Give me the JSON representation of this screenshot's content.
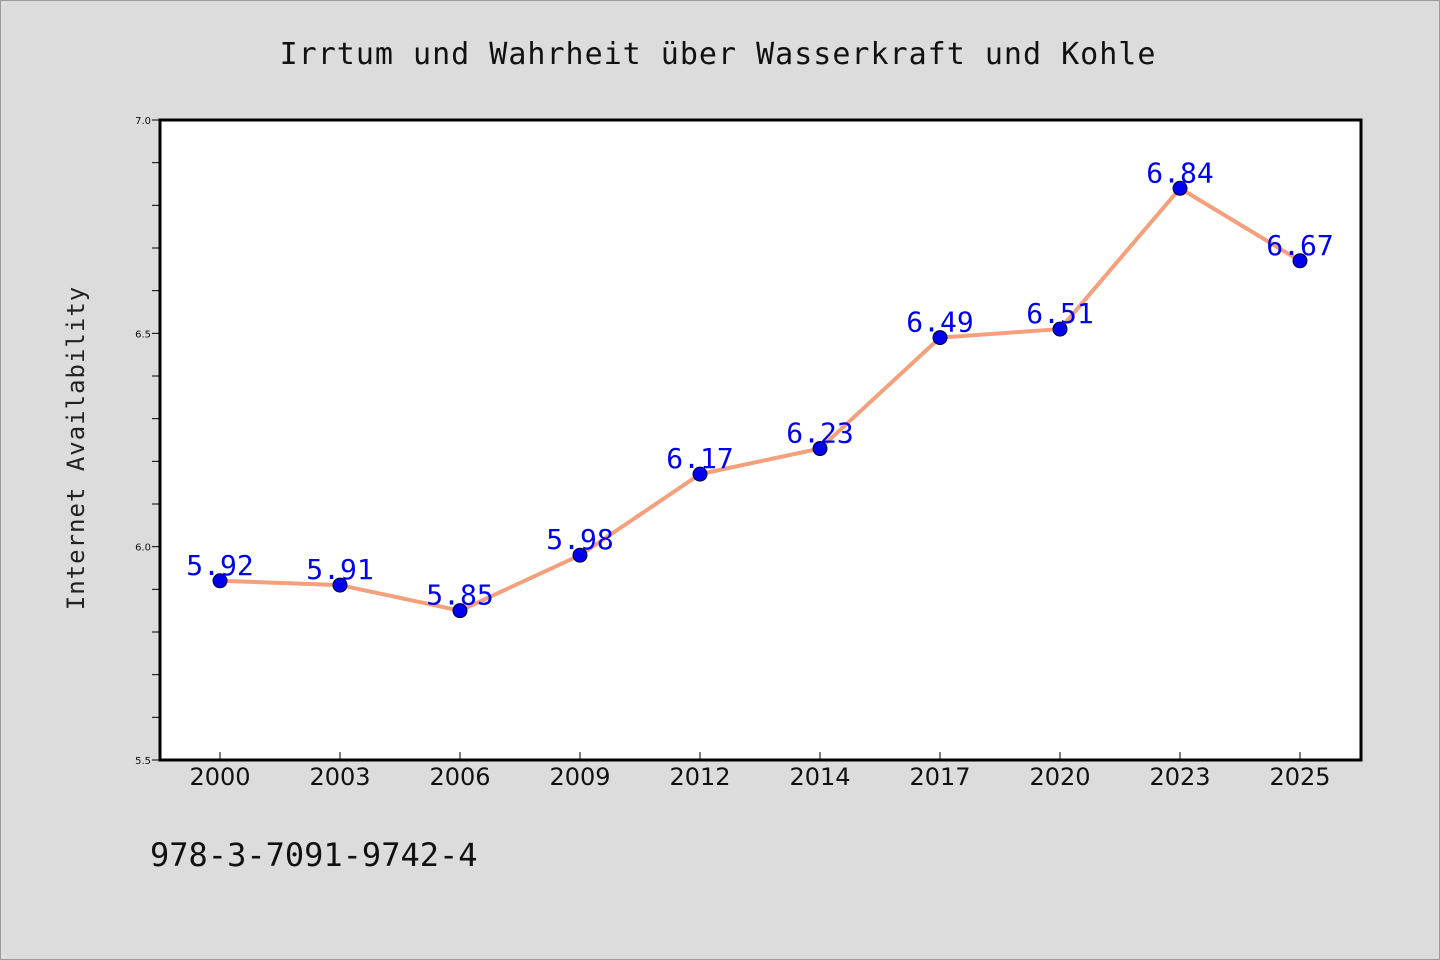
{
  "chart_data": {
    "type": "line",
    "title": "Irrtum und Wahrheit über Wasserkraft und Kohle",
    "xlabel": "",
    "ylabel": "Internet Availability",
    "categories": [
      "2000",
      "2003",
      "2006",
      "2009",
      "2012",
      "2014",
      "2017",
      "2020",
      "2023",
      "2025"
    ],
    "series": [
      {
        "values": [
          5.92,
          5.91,
          5.85,
          5.98,
          6.17,
          6.23,
          6.49,
          6.51,
          6.84,
          6.67
        ],
        "line_color": "#f4a07c",
        "marker_color": "#0000ee"
      }
    ],
    "data_labels": [
      "5.92",
      "5.91",
      "5.85",
      "5.98",
      "6.17",
      "6.23",
      "6.49",
      "6.51",
      "6.84",
      "6.67"
    ],
    "ylim": [
      5.5,
      7.0
    ],
    "yticks": [
      5.5,
      6.0,
      6.5,
      7.0
    ],
    "ytick_labels": [
      "5.5",
      "6.0",
      "6.5",
      "7.0"
    ],
    "grid": false,
    "legend": "none"
  },
  "footer": {
    "isbn": "978-3-7091-9742-4"
  }
}
